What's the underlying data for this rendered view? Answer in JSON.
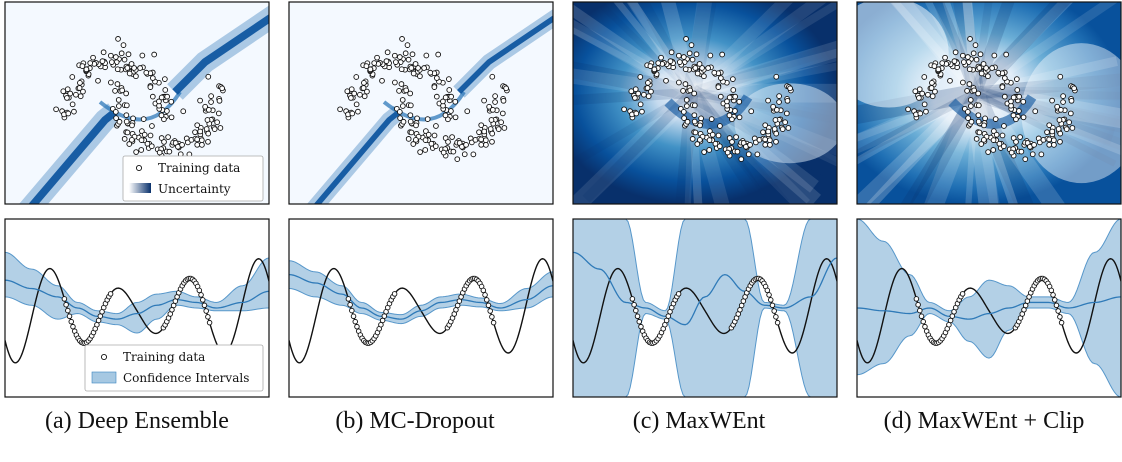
{
  "captions": [
    "(a) Deep Ensemble",
    "(b) MC-Dropout",
    "(c) MaxWEnt",
    "(d) MaxWEnt + Clip"
  ],
  "legend_top": {
    "training_data": "Training data",
    "uncertainty": "Uncertainty"
  },
  "legend_bottom": {
    "training_data": "Training data",
    "confidence": "Confidence Intervals"
  },
  "colors": {
    "dark_blue": "#08306b",
    "mid_blue": "#2171b5",
    "light_blue": "#deebf7",
    "band_fill": "#a6c8e2",
    "band_edge": "#3a85c1",
    "mean_line": "#2f7ab8",
    "truth_line": "#111111"
  },
  "chart_data": [
    {
      "type": "heatmap",
      "panel": "(a) Deep Ensemble",
      "description_of_colormap": "Blues",
      "uncertainty_pattern": "thin diagonal band of high uncertainty along the decision boundary, low elsewhere",
      "x": [
        -2.0,
        3.0
      ],
      "y": [
        -1.6,
        2.0
      ]
    },
    {
      "type": "heatmap",
      "panel": "(b) MC-Dropout",
      "description_of_colormap": "Blues",
      "uncertainty_pattern": "thin boundary band, high uncertainty only near the separating curve",
      "x": [
        -2.0,
        3.0
      ],
      "y": [
        -1.6,
        2.0
      ]
    },
    {
      "type": "heatmap",
      "panel": "(c) MaxWEnt",
      "description_of_colormap": "Blues",
      "uncertainty_pattern": "high uncertainty everywhere except a low region around the training data",
      "x": [
        -2.0,
        3.0
      ],
      "y": [
        -1.6,
        2.0
      ]
    },
    {
      "type": "heatmap",
      "panel": "(d) MaxWEnt + Clip",
      "description_of_colormap": "Blues",
      "uncertainty_pattern": "high uncertainty everywhere except low regions near the data",
      "x": [
        -2.0,
        3.0
      ],
      "y": [
        -1.6,
        2.0
      ]
    },
    {
      "type": "line",
      "panel": "(a) Deep Ensemble",
      "xlim": [
        -1.0,
        1.0
      ],
      "ylim": [
        -1.6,
        1.6
      ],
      "x": [
        -1.0,
        -0.8,
        -0.6,
        -0.45,
        -0.3,
        -0.15,
        0.0,
        0.15,
        0.3,
        0.45,
        0.6,
        0.8,
        1.0
      ],
      "mean": [
        0.5,
        0.35,
        0.2,
        0.0,
        -0.15,
        -0.2,
        -0.1,
        0.05,
        0.15,
        0.1,
        0.0,
        0.1,
        0.3
      ],
      "lower": [
        0.2,
        0.05,
        -0.2,
        -0.1,
        -0.25,
        -0.3,
        -0.45,
        -0.2,
        0.05,
        0.0,
        -0.05,
        -0.05,
        0.0
      ],
      "upper": [
        1.0,
        0.7,
        0.4,
        0.1,
        -0.05,
        -0.1,
        0.1,
        0.25,
        0.3,
        0.2,
        0.1,
        0.4,
        0.9
      ]
    },
    {
      "type": "line",
      "panel": "(b) MC-Dropout",
      "xlim": [
        -1.0,
        1.0
      ],
      "ylim": [
        -1.6,
        1.6
      ],
      "x": [
        -1.0,
        -0.8,
        -0.6,
        -0.45,
        -0.3,
        -0.15,
        0.0,
        0.15,
        0.3,
        0.45,
        0.6,
        0.8,
        1.0
      ],
      "mean": [
        0.6,
        0.45,
        0.25,
        0.0,
        -0.15,
        -0.2,
        -0.05,
        0.1,
        0.15,
        0.1,
        0.0,
        0.15,
        0.4
      ],
      "lower": [
        0.35,
        0.2,
        0.05,
        -0.1,
        -0.22,
        -0.28,
        -0.15,
        0.0,
        0.05,
        0.02,
        -0.05,
        0.0,
        0.2
      ],
      "upper": [
        0.85,
        0.65,
        0.4,
        0.1,
        -0.08,
        -0.12,
        0.05,
        0.2,
        0.25,
        0.18,
        0.08,
        0.35,
        0.65
      ]
    },
    {
      "type": "line",
      "panel": "(c) MaxWEnt",
      "xlim": [
        -1.0,
        1.0
      ],
      "ylim": [
        -1.6,
        1.6
      ],
      "x": [
        -1.0,
        -0.8,
        -0.6,
        -0.45,
        -0.3,
        -0.15,
        0.0,
        0.15,
        0.3,
        0.45,
        0.6,
        0.8,
        1.0
      ],
      "mean": [
        1.0,
        0.7,
        0.1,
        0.0,
        -0.15,
        -0.3,
        0.2,
        0.6,
        0.3,
        0.05,
        0.0,
        0.2,
        0.9
      ],
      "lower": [
        -1.6,
        -1.6,
        -1.6,
        -0.1,
        -0.2,
        -1.6,
        -1.6,
        -1.6,
        -1.6,
        0.0,
        -0.05,
        -1.6,
        -1.6
      ],
      "upper": [
        1.6,
        1.6,
        1.6,
        0.1,
        -0.05,
        1.6,
        1.6,
        1.6,
        1.6,
        0.1,
        0.05,
        1.6,
        1.6
      ]
    },
    {
      "type": "line",
      "panel": "(d) MaxWEnt + Clip",
      "xlim": [
        -1.0,
        1.0
      ],
      "ylim": [
        -1.6,
        1.6
      ],
      "x": [
        -1.0,
        -0.8,
        -0.6,
        -0.45,
        -0.3,
        -0.15,
        0.0,
        0.15,
        0.3,
        0.45,
        0.6,
        0.8,
        1.0
      ],
      "mean": [
        0.0,
        -0.05,
        -0.1,
        0.0,
        -0.15,
        -0.2,
        -0.1,
        0.0,
        0.1,
        0.1,
        0.0,
        0.1,
        0.2
      ],
      "lower": [
        -1.2,
        -1.0,
        -0.5,
        -0.1,
        -0.25,
        -0.6,
        -0.9,
        -0.4,
        0.0,
        0.0,
        -0.1,
        -1.0,
        -1.6
      ],
      "upper": [
        1.6,
        1.2,
        0.6,
        0.1,
        -0.05,
        0.2,
        0.5,
        0.4,
        0.2,
        0.2,
        0.1,
        1.0,
        1.6
      ]
    },
    {
      "type": "line",
      "role": "true function",
      "expression": "y = -sin(6x)*... (oscillating)",
      "x_ref": [
        -1.0,
        1.0
      ]
    }
  ]
}
